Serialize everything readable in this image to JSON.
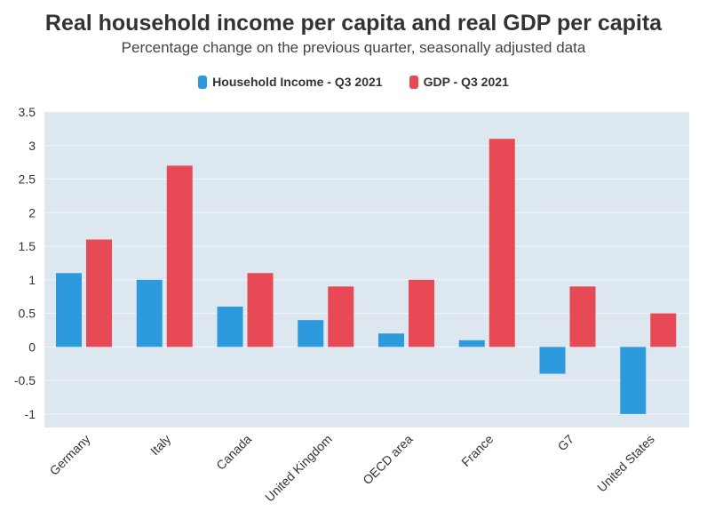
{
  "header": {
    "title": "Real household income per capita and real GDP per capita",
    "subtitle": "Percentage change on the previous quarter, seasonally adjusted data"
  },
  "colors": {
    "household": "#2E9ADE",
    "gdp": "#E84A55",
    "plot_bg": "#DDE7EF",
    "grid": "#F2F6F9"
  },
  "chart_data": {
    "type": "bar",
    "title": "Real household income per capita and real GDP per capita",
    "subtitle": "Percentage change on the previous quarter, seasonally adjusted data",
    "categories": [
      "Germany",
      "Italy",
      "Canada",
      "United Kingdom",
      "OECD area",
      "France",
      "G7",
      "United States"
    ],
    "series": [
      {
        "name": "Household Income - Q3 2021",
        "values": [
          1.1,
          1.0,
          0.6,
          0.4,
          0.2,
          0.1,
          -0.4,
          -1.0
        ]
      },
      {
        "name": "GDP - Q3 2021",
        "values": [
          1.6,
          2.7,
          1.1,
          0.9,
          1.0,
          3.1,
          0.9,
          0.5
        ]
      }
    ],
    "yticks": [
      3.5,
      3,
      2.5,
      2,
      1.5,
      1,
      0.5,
      0,
      -0.5,
      -1
    ],
    "ylim": [
      -1.2,
      3.5
    ],
    "grid": true,
    "legend_position": "top-center"
  }
}
